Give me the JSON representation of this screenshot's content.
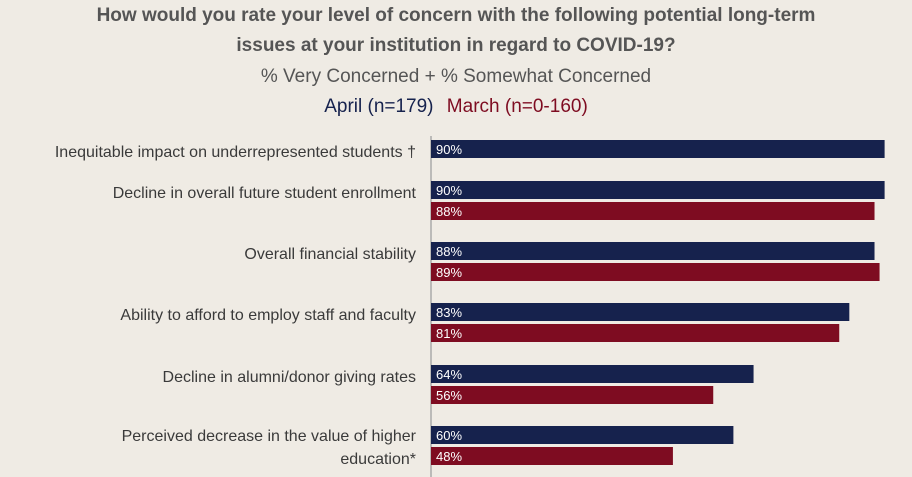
{
  "title_line1": "How would you rate your level of concern with the following potential long-term",
  "title_line2": "issues at your institution in regard to COVID-19?",
  "subtitle": "% Very Concerned + % Somewhat Concerned",
  "legend": {
    "april": "April (n=179)",
    "march": "March (n=0-160)"
  },
  "colors": {
    "april": "#16224d",
    "march": "#7e0c21",
    "background": "#efebe4"
  },
  "chart_data": {
    "type": "bar",
    "orientation": "horizontal",
    "title": "How would you rate your level of concern with the following potential long-term issues at your institution in regard to COVID-19?",
    "subtitle": "% Very Concerned + % Somewhat Concerned",
    "categories": [
      [
        "Inequitable impact on underrepresented students †"
      ],
      [
        "Decline in overall future student enrollment"
      ],
      [
        "Overall financial stability"
      ],
      [
        "Ability to afford to employ staff and faculty"
      ],
      [
        "Decline in alumni/donor giving rates"
      ],
      [
        "Perceived decrease in the value of higher",
        "education*"
      ]
    ],
    "series": [
      {
        "name": "April (n=179)",
        "color": "#16224d",
        "values": [
          90,
          90,
          88,
          83,
          64,
          60
        ],
        "labels": [
          "90%",
          "90%",
          "88%",
          "83%",
          "64%",
          "60%"
        ]
      },
      {
        "name": "March (n=0-160)",
        "color": "#7e0c21",
        "values": [
          null,
          88,
          89,
          81,
          56,
          48
        ],
        "labels": [
          "",
          "88%",
          "89%",
          "81%",
          "56%",
          "48%"
        ]
      }
    ],
    "xlim": [
      0,
      100
    ],
    "grid": false,
    "legend_position": "top"
  }
}
